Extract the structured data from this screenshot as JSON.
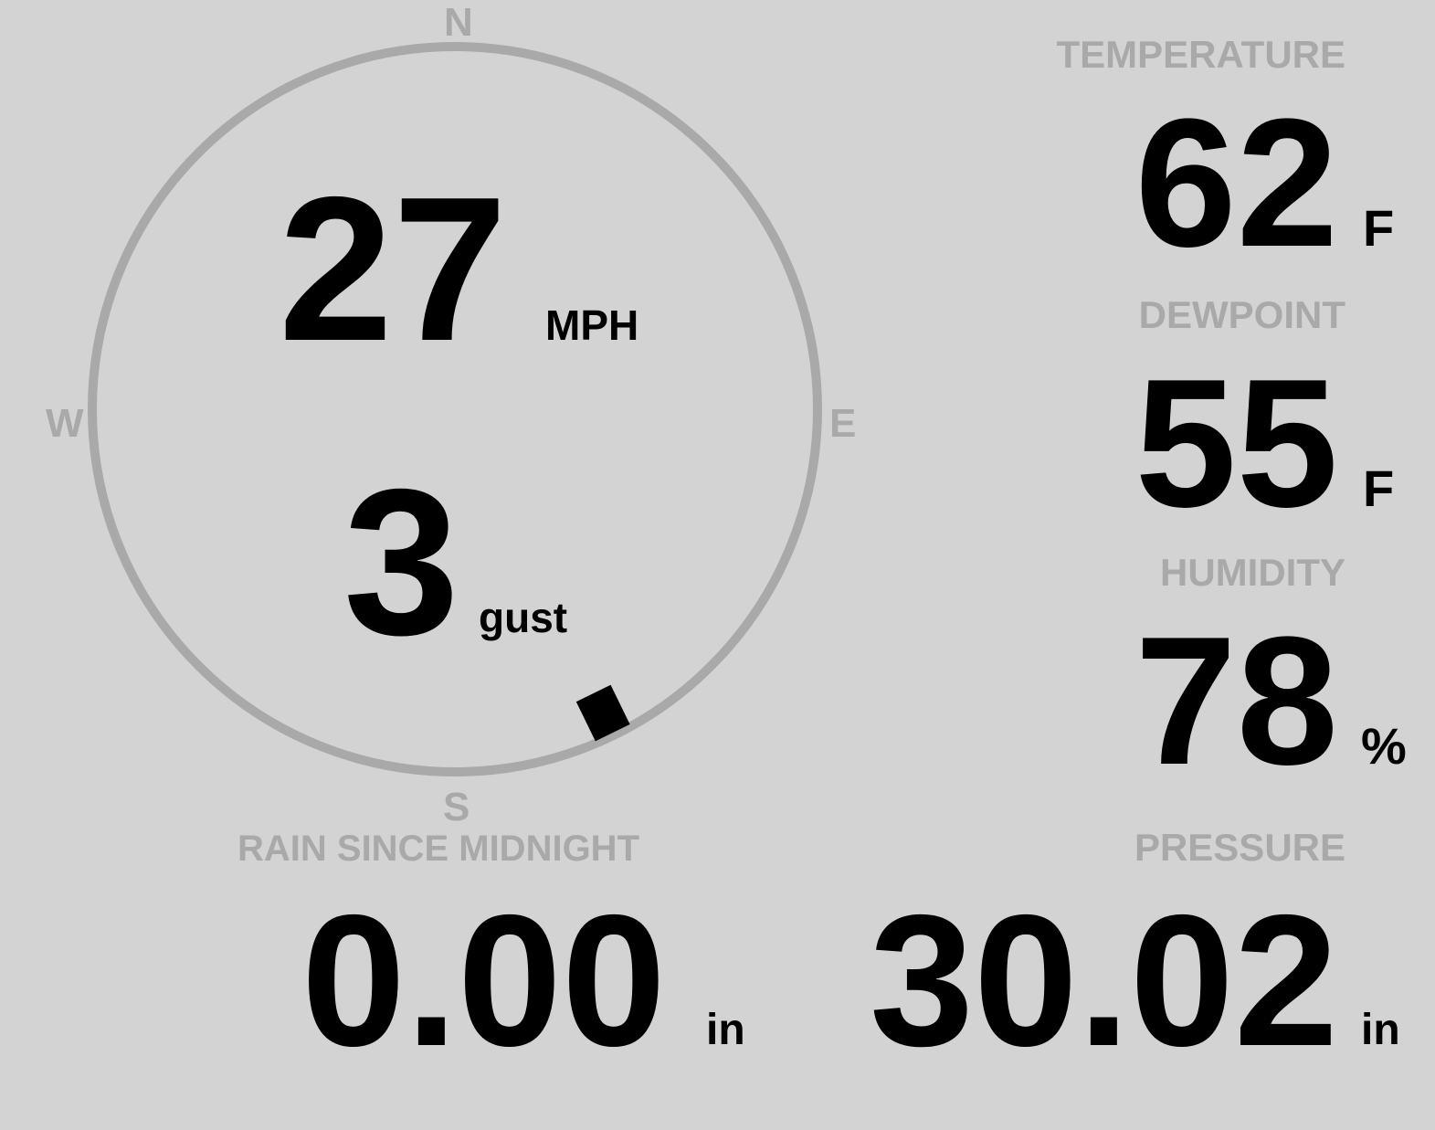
{
  "colors": {
    "background": "#d3d3d3",
    "label": "#a9a9a9",
    "value": "#000000",
    "ring": "#a9a9a9"
  },
  "wind": {
    "speed": "27",
    "speed_unit": "MPH",
    "gust": "3",
    "gust_label": "gust",
    "direction_deg": 154,
    "compass": {
      "n": "N",
      "e": "E",
      "s": "S",
      "w": "W"
    }
  },
  "temperature": {
    "label": "TEMPERATURE",
    "value": "62",
    "unit": "F"
  },
  "dewpoint": {
    "label": "DEWPOINT",
    "value": "55",
    "unit": "F"
  },
  "humidity": {
    "label": "HUMIDITY",
    "value": "78",
    "unit": "%"
  },
  "rain": {
    "label": "RAIN SINCE MIDNIGHT",
    "value": "0.00",
    "unit": "in"
  },
  "pressure": {
    "label": "PRESSURE",
    "value": "30.02",
    "unit": "in"
  }
}
